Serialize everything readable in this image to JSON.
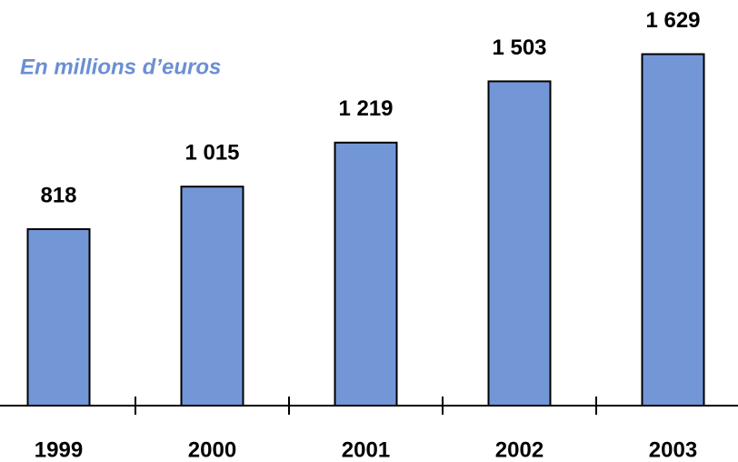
{
  "chart_data": {
    "type": "bar",
    "subtitle": "En millions d’euros",
    "categories": [
      "1999",
      "2000",
      "2001",
      "2002",
      "2003"
    ],
    "values": [
      818,
      1015,
      1219,
      1503,
      1629
    ],
    "value_labels": [
      "818",
      "1 015",
      "1 219",
      "1 503",
      "1 629"
    ],
    "color": "#7397d6",
    "ylim": [
      0,
      1880
    ]
  }
}
